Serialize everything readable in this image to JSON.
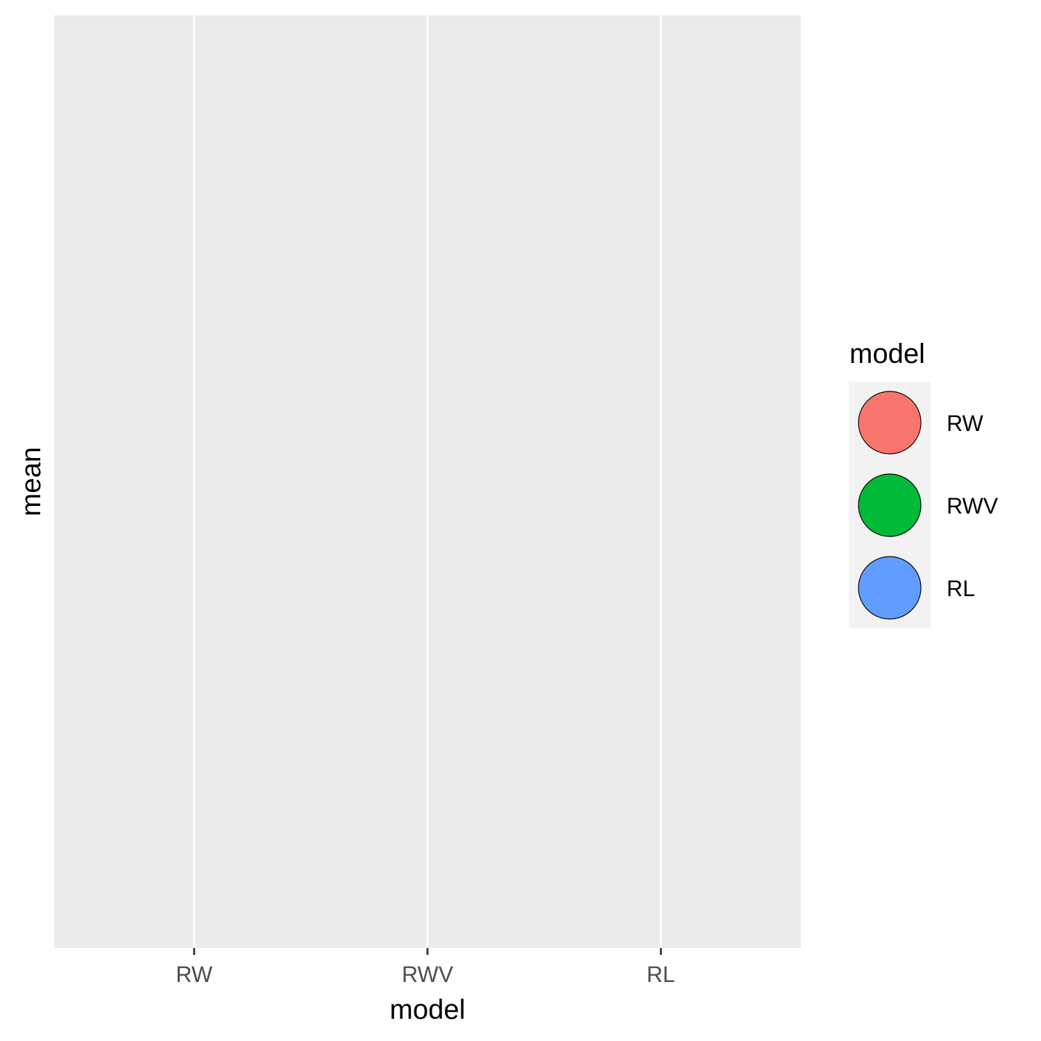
{
  "chart_data": {
    "type": "scatter",
    "categories": [
      "RW",
      "RWV",
      "RL"
    ],
    "series": [],
    "xlabel": "model",
    "ylabel": "mean",
    "grid": true,
    "legend": {
      "title": "model",
      "placement": "right",
      "items": [
        {
          "label": "RW",
          "color": "#F8766D"
        },
        {
          "label": "RWV",
          "color": "#00BA38"
        },
        {
          "label": "RL",
          "color": "#619CFF"
        }
      ]
    },
    "colors": {
      "panel_background": "#EBEBEB",
      "gridline": "#FFFFFF",
      "legend_key_background": "#F2F2F2"
    }
  }
}
